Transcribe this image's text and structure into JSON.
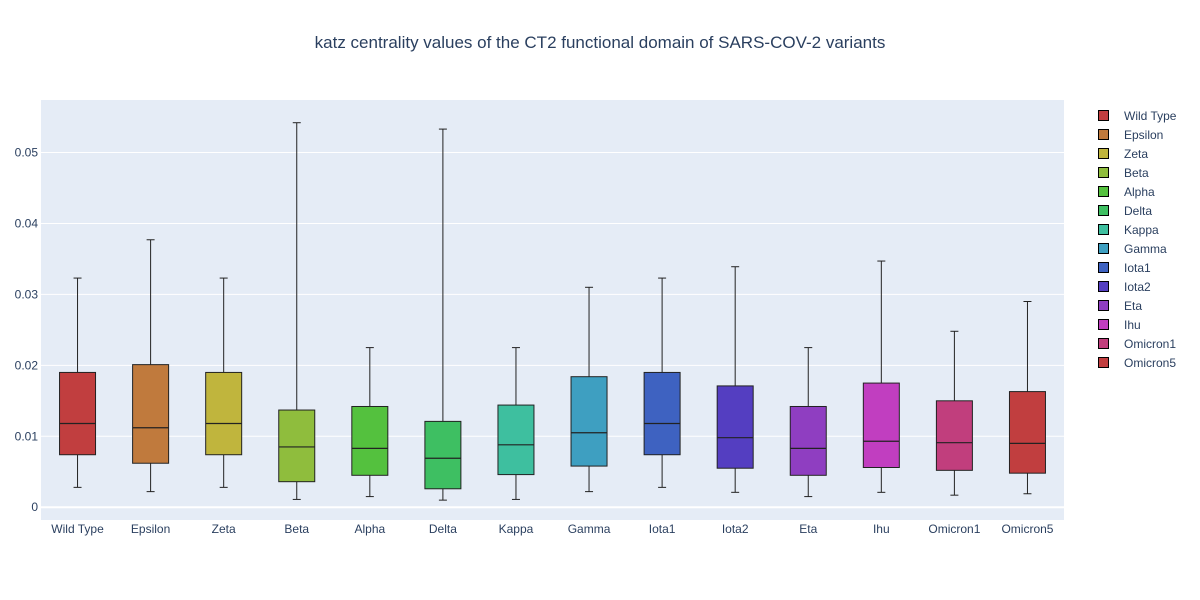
{
  "chart_data": {
    "type": "box",
    "title": "katz centrality values of the CT2 functional domain of SARS-COV-2 variants",
    "xlabel": "",
    "ylabel": "",
    "ylim": [
      -0.0018,
      0.0574
    ],
    "yticks": [
      0,
      0.01,
      0.02,
      0.03,
      0.04,
      0.05
    ],
    "ytick_labels": [
      "0",
      "0.01",
      "0.02",
      "0.03",
      "0.04",
      "0.05"
    ],
    "grid": true,
    "legend_position": "right",
    "series": [
      {
        "name": "Wild Type",
        "color": "#c13e3f",
        "min": 0.0028,
        "q1": 0.0074,
        "median": 0.0118,
        "q3": 0.019,
        "max": 0.0323
      },
      {
        "name": "Epsilon",
        "color": "#c07a3d",
        "min": 0.0022,
        "q1": 0.0062,
        "median": 0.0112,
        "q3": 0.0201,
        "max": 0.0377
      },
      {
        "name": "Zeta",
        "color": "#c0b53d",
        "min": 0.0028,
        "q1": 0.0074,
        "median": 0.0118,
        "q3": 0.019,
        "max": 0.0323
      },
      {
        "name": "Beta",
        "color": "#8fbd3d",
        "min": 0.0011,
        "q1": 0.0036,
        "median": 0.0085,
        "q3": 0.0137,
        "max": 0.0542
      },
      {
        "name": "Alpha",
        "color": "#54c13e",
        "min": 0.0015,
        "q1": 0.0045,
        "median": 0.0083,
        "q3": 0.0142,
        "max": 0.0225
      },
      {
        "name": "Delta",
        "color": "#3ebf62",
        "min": 0.001,
        "q1": 0.0026,
        "median": 0.0069,
        "q3": 0.0121,
        "max": 0.0533
      },
      {
        "name": "Kappa",
        "color": "#3ebf9f",
        "min": 0.0011,
        "q1": 0.0046,
        "median": 0.0088,
        "q3": 0.0144,
        "max": 0.0225
      },
      {
        "name": "Gamma",
        "color": "#3e9fc1",
        "min": 0.0022,
        "q1": 0.0058,
        "median": 0.0105,
        "q3": 0.0184,
        "max": 0.031
      },
      {
        "name": "Iota1",
        "color": "#3e62c1",
        "min": 0.0028,
        "q1": 0.0074,
        "median": 0.0118,
        "q3": 0.019,
        "max": 0.0323
      },
      {
        "name": "Iota2",
        "color": "#543ec1",
        "min": 0.0021,
        "q1": 0.0055,
        "median": 0.0098,
        "q3": 0.0171,
        "max": 0.0339
      },
      {
        "name": "Eta",
        "color": "#8f3ec1",
        "min": 0.0015,
        "q1": 0.0045,
        "median": 0.0083,
        "q3": 0.0142,
        "max": 0.0225
      },
      {
        "name": "Ihu",
        "color": "#c13ec0",
        "min": 0.0021,
        "q1": 0.0056,
        "median": 0.0093,
        "q3": 0.0175,
        "max": 0.0347
      },
      {
        "name": "Omicron1",
        "color": "#c13e7d",
        "min": 0.0017,
        "q1": 0.0052,
        "median": 0.0091,
        "q3": 0.015,
        "max": 0.0248
      },
      {
        "name": "Omicron5",
        "color": "#c13e3f",
        "min": 0.0019,
        "q1": 0.0048,
        "median": 0.009,
        "q3": 0.0163,
        "max": 0.029
      }
    ]
  }
}
